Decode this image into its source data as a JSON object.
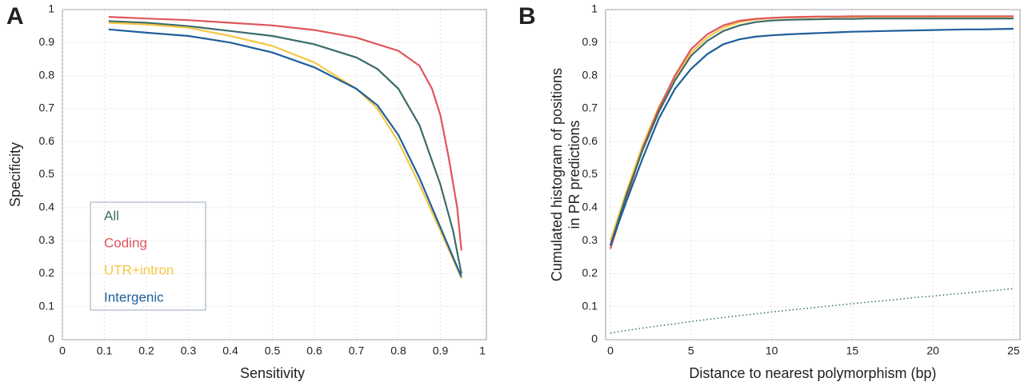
{
  "chart_data": [
    {
      "type": "line",
      "label": "A",
      "xlabel": "Sensitivity",
      "ylabel": "Specificity",
      "xlim": [
        0,
        1
      ],
      "ylim": [
        0,
        1
      ],
      "xticks": [
        0,
        0.1,
        0.2,
        0.3,
        0.4,
        0.5,
        0.6,
        0.7,
        0.8,
        0.9,
        1
      ],
      "yticks": [
        0,
        0.1,
        0.2,
        0.3,
        0.4,
        0.5,
        0.6,
        0.7,
        0.8,
        0.9,
        1
      ],
      "grid": true,
      "legend": "lower left",
      "series": [
        {
          "name": "All",
          "color": "#3d6b6b",
          "x": [
            0.11,
            0.2,
            0.3,
            0.4,
            0.5,
            0.6,
            0.7,
            0.75,
            0.8,
            0.85,
            0.9,
            0.93,
            0.95
          ],
          "values": [
            0.965,
            0.96,
            0.95,
            0.935,
            0.92,
            0.895,
            0.855,
            0.82,
            0.76,
            0.65,
            0.47,
            0.33,
            0.2
          ]
        },
        {
          "name": "Coding",
          "color": "#e0555a",
          "x": [
            0.11,
            0.2,
            0.3,
            0.4,
            0.5,
            0.6,
            0.7,
            0.8,
            0.85,
            0.88,
            0.9,
            0.92,
            0.94,
            0.95
          ],
          "values": [
            0.978,
            0.973,
            0.968,
            0.96,
            0.952,
            0.938,
            0.915,
            0.875,
            0.83,
            0.76,
            0.68,
            0.55,
            0.4,
            0.27
          ]
        },
        {
          "name": "UTR+intron",
          "color": "#f5c842",
          "x": [
            0.11,
            0.2,
            0.3,
            0.4,
            0.5,
            0.6,
            0.7,
            0.75,
            0.8,
            0.85,
            0.9,
            0.95
          ],
          "values": [
            0.96,
            0.955,
            0.945,
            0.92,
            0.89,
            0.84,
            0.76,
            0.7,
            0.6,
            0.47,
            0.33,
            0.185
          ]
        },
        {
          "name": "Intergenic",
          "color": "#1f5f9a",
          "x": [
            0.11,
            0.2,
            0.3,
            0.4,
            0.5,
            0.6,
            0.7,
            0.75,
            0.8,
            0.85,
            0.9,
            0.95
          ],
          "values": [
            0.94,
            0.93,
            0.92,
            0.9,
            0.87,
            0.825,
            0.76,
            0.71,
            0.62,
            0.49,
            0.34,
            0.19
          ]
        }
      ]
    },
    {
      "type": "line",
      "label": "B",
      "xlabel": "Distance to nearest polymorphism (bp)",
      "ylabel": [
        "Cumulated histogram of positions",
        "in PR predictions"
      ],
      "xlim": [
        -0.3,
        25.4
      ],
      "ylim": [
        0,
        1
      ],
      "xticks": [
        0,
        5,
        10,
        15,
        20,
        25
      ],
      "yticks": [
        0,
        0.1,
        0.2,
        0.3,
        0.4,
        0.5,
        0.6,
        0.7,
        0.8,
        0.9,
        1
      ],
      "grid": true,
      "x": [
        0,
        1,
        2,
        3,
        4,
        5,
        6,
        7,
        8,
        9,
        10,
        11,
        12,
        13,
        14,
        15,
        16,
        17,
        18,
        19,
        20,
        21,
        22,
        23,
        24,
        25
      ],
      "series": [
        {
          "color": "#f5c842",
          "style": "solid",
          "values": [
            0.3,
            0.45,
            0.59,
            0.705,
            0.795,
            0.87,
            0.915,
            0.945,
            0.962,
            0.97,
            0.974,
            0.976,
            0.977,
            0.978,
            0.978,
            0.978,
            0.978,
            0.978,
            0.978,
            0.978,
            0.978,
            0.978,
            0.978,
            0.978,
            0.978,
            0.978
          ]
        },
        {
          "color": "#e0555a",
          "style": "solid",
          "values": [
            0.275,
            0.43,
            0.58,
            0.7,
            0.8,
            0.88,
            0.925,
            0.952,
            0.966,
            0.972,
            0.975,
            0.977,
            0.978,
            0.979,
            0.979,
            0.98,
            0.98,
            0.98,
            0.98,
            0.98,
            0.98,
            0.98,
            0.98,
            0.98,
            0.98,
            0.98
          ]
        },
        {
          "color": "#3d6b6b",
          "style": "solid",
          "values": [
            0.285,
            0.44,
            0.575,
            0.69,
            0.785,
            0.86,
            0.905,
            0.935,
            0.952,
            0.962,
            0.967,
            0.969,
            0.97,
            0.971,
            0.972,
            0.972,
            0.973,
            0.973,
            0.973,
            0.973,
            0.973,
            0.973,
            0.973,
            0.973,
            0.973,
            0.973
          ]
        },
        {
          "color": "#1f5f9a",
          "style": "solid",
          "values": [
            0.285,
            0.42,
            0.55,
            0.67,
            0.76,
            0.82,
            0.865,
            0.895,
            0.91,
            0.918,
            0.922,
            0.925,
            0.927,
            0.929,
            0.931,
            0.933,
            0.934,
            0.935,
            0.936,
            0.937,
            0.938,
            0.939,
            0.94,
            0.94,
            0.941,
            0.942
          ]
        },
        {
          "color": "#3d6b6b",
          "style": "dotted",
          "values": [
            0.02,
            0.028,
            0.035,
            0.042,
            0.048,
            0.055,
            0.061,
            0.067,
            0.073,
            0.078,
            0.084,
            0.089,
            0.094,
            0.099,
            0.104,
            0.109,
            0.114,
            0.118,
            0.123,
            0.128,
            0.132,
            0.137,
            0.141,
            0.146,
            0.15,
            0.155
          ]
        }
      ]
    }
  ]
}
